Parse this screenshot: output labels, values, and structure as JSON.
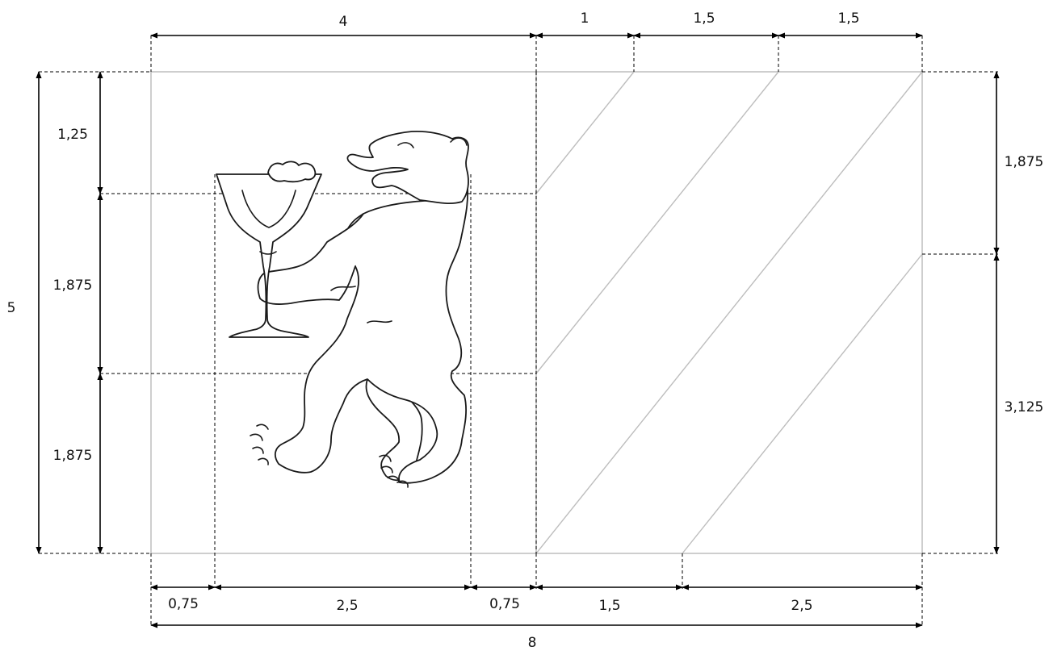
{
  "labels": {
    "top": [
      "4",
      "1",
      "1,5",
      "1,5"
    ],
    "bottom": [
      "0,75",
      "2,5",
      "0,75",
      "1,5",
      "2,5"
    ],
    "total_width": "8",
    "total_height": "5",
    "left_inner": [
      "1,25",
      "1,875",
      "1,875"
    ],
    "right": [
      "1,875",
      "3,125"
    ]
  },
  "colors": {
    "line": "#000000",
    "flag_outline": "#b9b9b9",
    "background": "#ffffff"
  },
  "figure": {
    "emblem": "bear-holding-goblet",
    "stripes": "diagonal"
  }
}
